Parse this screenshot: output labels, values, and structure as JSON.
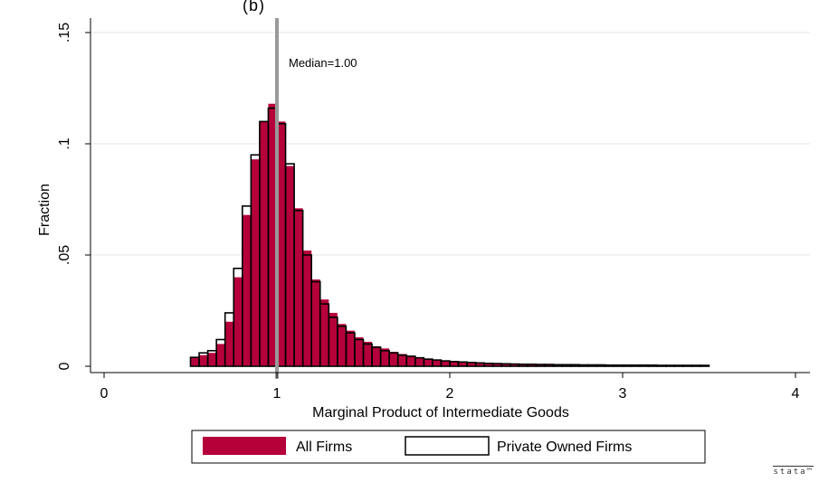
{
  "panel_label_fragment": "(b)",
  "stata_mark": "stata™",
  "chart_data": {
    "type": "bar",
    "title": "",
    "xlabel": "Marginal Product of Intermediate Goods",
    "ylabel": "Fraction",
    "xlim": [
      0,
      4
    ],
    "ylim": [
      0,
      0.15
    ],
    "xticks": [
      0,
      1,
      2,
      3,
      4
    ],
    "yticks": [
      0,
      0.05,
      0.1,
      0.15
    ],
    "ytick_labels": [
      "0",
      ".05",
      ".1",
      ".15"
    ],
    "grid": "horizontal",
    "bin_width": 0.05,
    "bin_starts": [
      0.5,
      0.55,
      0.6,
      0.65,
      0.7,
      0.75,
      0.8,
      0.85,
      0.9,
      0.95,
      1.0,
      1.05,
      1.1,
      1.15,
      1.2,
      1.25,
      1.3,
      1.35,
      1.4,
      1.45,
      1.5,
      1.55,
      1.6,
      1.65,
      1.7,
      1.75,
      1.8,
      1.85,
      1.9,
      1.95,
      2.0,
      2.05,
      2.1,
      2.15,
      2.2,
      2.25,
      2.3,
      2.35,
      2.4,
      2.45,
      2.5,
      2.55,
      2.6,
      2.65,
      2.7,
      2.75,
      2.8,
      2.85,
      2.9,
      2.95,
      3.0,
      3.05,
      3.1,
      3.15,
      3.2,
      3.25,
      3.3,
      3.35,
      3.4,
      3.45
    ],
    "series": [
      {
        "name": "All Firms",
        "color": "#b5003a",
        "values": [
          0.004,
          0.005,
          0.006,
          0.01,
          0.02,
          0.04,
          0.068,
          0.093,
          0.11,
          0.118,
          0.11,
          0.09,
          0.071,
          0.052,
          0.039,
          0.03,
          0.024,
          0.019,
          0.016,
          0.013,
          0.011,
          0.009,
          0.008,
          0.0065,
          0.0055,
          0.0047,
          0.004,
          0.0034,
          0.003,
          0.0026,
          0.0023,
          0.002,
          0.0018,
          0.0016,
          0.0014,
          0.0013,
          0.0012,
          0.0011,
          0.001,
          0.0009,
          0.0009,
          0.0008,
          0.0008,
          0.0007,
          0.0007,
          0.0007,
          0.0006,
          0.0006,
          0.0006,
          0.0006,
          0.0005,
          0.0005,
          0.0005,
          0.0005,
          0.0005,
          0.0005,
          0.0005,
          0.0004,
          0.0004,
          0.0004
        ]
      },
      {
        "name": "Private Owned Firms",
        "color": "#000000",
        "values": [
          0.004,
          0.006,
          0.007,
          0.012,
          0.024,
          0.044,
          0.072,
          0.095,
          0.11,
          0.116,
          0.109,
          0.091,
          0.07,
          0.05,
          0.038,
          0.028,
          0.022,
          0.018,
          0.015,
          0.012,
          0.01,
          0.0085,
          0.007,
          0.006,
          0.005,
          0.0045,
          0.0038,
          0.0032,
          0.0028,
          0.0024,
          0.0021,
          0.0019,
          0.0017,
          0.0015,
          0.0013,
          0.0012,
          0.0011,
          0.001,
          0.0009,
          0.0009,
          0.0008,
          0.0008,
          0.0007,
          0.0007,
          0.0007,
          0.0006,
          0.0006,
          0.0006,
          0.0005,
          0.0005,
          0.0005,
          0.0005,
          0.0005,
          0.0005,
          0.0004,
          0.0004,
          0.0004,
          0.0004,
          0.0004,
          0.0004
        ]
      }
    ],
    "reference_line": {
      "x": 1.0,
      "label": "Median=1.00",
      "color": "#999999"
    },
    "legend": {
      "placement": "bottom"
    }
  }
}
